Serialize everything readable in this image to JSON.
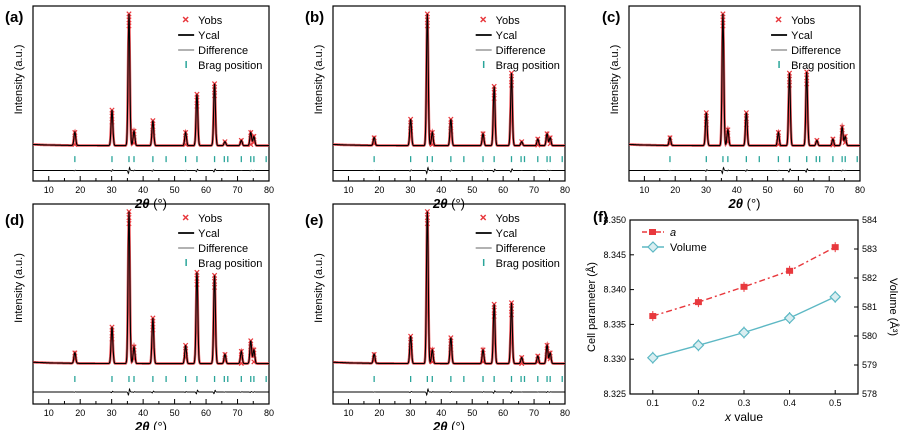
{
  "chart_data": [
    {
      "type": "line",
      "panel_label": "(a)",
      "xlabel": "2θ (°)",
      "ylabel": "Intensity (a.u.)",
      "xlim": [
        5,
        80
      ],
      "xticks": [
        10,
        20,
        30,
        40,
        50,
        60,
        70,
        80
      ],
      "legend": [
        "Yobs",
        "Ycal",
        "Difference",
        "Brag position"
      ],
      "legend_position": "top-right",
      "peaks": [
        {
          "x": 18.3,
          "y": 10
        },
        {
          "x": 30.1,
          "y": 27
        },
        {
          "x": 35.5,
          "y": 100
        },
        {
          "x": 37.1,
          "y": 11
        },
        {
          "x": 43.1,
          "y": 19
        },
        {
          "x": 53.5,
          "y": 10
        },
        {
          "x": 57.1,
          "y": 39
        },
        {
          "x": 62.7,
          "y": 47
        },
        {
          "x": 66.0,
          "y": 3
        },
        {
          "x": 71.2,
          "y": 4
        },
        {
          "x": 74.2,
          "y": 10
        },
        {
          "x": 75.2,
          "y": 7
        }
      ],
      "bragg_positions": [
        18.3,
        30.1,
        35.5,
        37.1,
        43.1,
        47.3,
        53.5,
        57.1,
        62.7,
        65.8,
        66.9,
        71.2,
        74.2,
        75.2,
        79.1
      ]
    },
    {
      "type": "line",
      "panel_label": "(b)",
      "xlabel": "2θ (°)",
      "ylabel": "Intensity (a.u.)",
      "xlim": [
        5,
        80
      ],
      "xticks": [
        10,
        20,
        30,
        40,
        50,
        60,
        70,
        80
      ],
      "legend": [
        "Yobs",
        "Ycal",
        "Difference",
        "Brag position"
      ],
      "legend_position": "top-right",
      "peaks": [
        {
          "x": 18.3,
          "y": 6
        },
        {
          "x": 30.1,
          "y": 20
        },
        {
          "x": 35.5,
          "y": 100
        },
        {
          "x": 37.1,
          "y": 10
        },
        {
          "x": 43.1,
          "y": 20
        },
        {
          "x": 53.5,
          "y": 9
        },
        {
          "x": 57.1,
          "y": 45
        },
        {
          "x": 62.7,
          "y": 55
        },
        {
          "x": 66.0,
          "y": 3
        },
        {
          "x": 71.2,
          "y": 5
        },
        {
          "x": 74.2,
          "y": 9
        },
        {
          "x": 75.2,
          "y": 6
        }
      ],
      "bragg_positions": [
        18.3,
        30.1,
        35.5,
        37.1,
        43.1,
        47.3,
        53.5,
        57.1,
        62.7,
        65.8,
        66.9,
        71.2,
        74.2,
        75.2,
        79.1
      ]
    },
    {
      "type": "line",
      "panel_label": "(c)",
      "xlabel": "2θ (°)",
      "ylabel": "Intensity (a.u.)",
      "xlim": [
        5,
        80
      ],
      "xticks": [
        10,
        20,
        30,
        40,
        50,
        60,
        70,
        80
      ],
      "legend": [
        "Yobs",
        "Ycal",
        "Difference",
        "Brag position"
      ],
      "legend_position": "top-right",
      "peaks": [
        {
          "x": 18.3,
          "y": 6
        },
        {
          "x": 30.1,
          "y": 25
        },
        {
          "x": 35.5,
          "y": 100
        },
        {
          "x": 37.1,
          "y": 12
        },
        {
          "x": 43.1,
          "y": 25
        },
        {
          "x": 53.5,
          "y": 10
        },
        {
          "x": 57.1,
          "y": 55
        },
        {
          "x": 62.7,
          "y": 56
        },
        {
          "x": 66.0,
          "y": 4
        },
        {
          "x": 71.2,
          "y": 5
        },
        {
          "x": 74.2,
          "y": 14
        },
        {
          "x": 75.2,
          "y": 7
        }
      ],
      "bragg_positions": [
        18.3,
        30.1,
        35.5,
        37.1,
        43.1,
        47.3,
        53.5,
        57.1,
        62.7,
        65.8,
        66.9,
        71.2,
        74.2,
        75.2,
        79.1
      ]
    },
    {
      "type": "line",
      "panel_label": "(d)",
      "xlabel": "2θ (°)",
      "ylabel": "Intensity (a.u.)",
      "xlim": [
        5,
        80
      ],
      "xticks": [
        10,
        20,
        30,
        40,
        50,
        60,
        70,
        80
      ],
      "legend": [
        "Yobs",
        "Ycal",
        "Difference",
        "Brag position"
      ],
      "legend_position": "top-right",
      "peaks": [
        {
          "x": 18.3,
          "y": 7
        },
        {
          "x": 30.1,
          "y": 24
        },
        {
          "x": 35.5,
          "y": 100
        },
        {
          "x": 37.1,
          "y": 11
        },
        {
          "x": 43.1,
          "y": 30
        },
        {
          "x": 53.5,
          "y": 12
        },
        {
          "x": 57.1,
          "y": 60
        },
        {
          "x": 62.7,
          "y": 58
        },
        {
          "x": 66.0,
          "y": 6
        },
        {
          "x": 71.2,
          "y": 8
        },
        {
          "x": 74.2,
          "y": 15
        },
        {
          "x": 75.2,
          "y": 9
        }
      ],
      "bragg_positions": [
        18.3,
        30.1,
        35.5,
        37.1,
        43.1,
        47.3,
        53.5,
        57.1,
        62.7,
        65.8,
        66.9,
        71.2,
        74.2,
        75.2,
        79.1
      ]
    },
    {
      "type": "line",
      "panel_label": "(e)",
      "xlabel": "2θ (°)",
      "ylabel": "Intensity (a.u.)",
      "xlim": [
        5,
        80
      ],
      "xticks": [
        10,
        20,
        30,
        40,
        50,
        60,
        70,
        80
      ],
      "legend": [
        "Yobs",
        "Ycal",
        "Difference",
        "Brag position"
      ],
      "legend_position": "top-right",
      "peaks": [
        {
          "x": 18.3,
          "y": 6
        },
        {
          "x": 30.1,
          "y": 18
        },
        {
          "x": 35.5,
          "y": 100
        },
        {
          "x": 37.1,
          "y": 9
        },
        {
          "x": 43.1,
          "y": 17
        },
        {
          "x": 53.5,
          "y": 9
        },
        {
          "x": 57.1,
          "y": 39
        },
        {
          "x": 62.7,
          "y": 40
        },
        {
          "x": 66.0,
          "y": 4
        },
        {
          "x": 71.2,
          "y": 5
        },
        {
          "x": 74.2,
          "y": 12
        },
        {
          "x": 75.2,
          "y": 7
        }
      ],
      "bragg_positions": [
        18.3,
        30.1,
        35.5,
        37.1,
        43.1,
        47.3,
        53.5,
        57.1,
        62.7,
        65.8,
        66.9,
        71.2,
        74.2,
        75.2,
        79.1
      ]
    },
    {
      "type": "line",
      "panel_label": "(f)",
      "xlabel": "x value",
      "ylabel": "Cell parameter (Å)",
      "y2label": "Volume (Å³)",
      "x": [
        0.1,
        0.2,
        0.3,
        0.4,
        0.5
      ],
      "xlim": [
        0.05,
        0.55
      ],
      "ylim": [
        8.325,
        8.35
      ],
      "yticks": [
        "8.325",
        "8.330",
        "8.335",
        "8.340",
        "8.345",
        "8.350"
      ],
      "y2lim": [
        578,
        584
      ],
      "y2ticks": [
        "578",
        "579",
        "580",
        "581",
        "582",
        "583",
        "584"
      ],
      "xticks": [
        "0.1",
        "0.2",
        "0.3",
        "0.4",
        "0.5"
      ],
      "legend_position": "top-left",
      "series": [
        {
          "name": "a",
          "axis": "left",
          "values": [
            8.3362,
            8.3382,
            8.3404,
            8.3427,
            8.3461
          ],
          "color": "#e8383d"
        },
        {
          "name": "Volume",
          "axis": "right",
          "values": [
            579.25,
            579.68,
            580.12,
            580.62,
            581.35
          ],
          "color": "#5db8c4"
        }
      ]
    }
  ]
}
